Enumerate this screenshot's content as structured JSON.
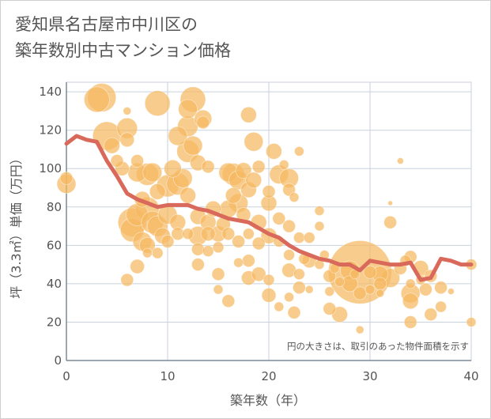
{
  "chart_data": {
    "type": "scatter",
    "title": "愛知県名古屋市中川区の\n築年数別中古マンション価格",
    "xlabel": "築年数（年）",
    "ylabel": "坪（3.3㎡）単価（万円）",
    "xlim": [
      0,
      40
    ],
    "ylim": [
      0,
      145
    ],
    "x_ticks": [
      0,
      10,
      20,
      30,
      40
    ],
    "y_ticks": [
      0,
      20,
      40,
      60,
      80,
      100,
      120,
      140
    ],
    "grid": true,
    "note": "円の大きさは、取引のあった物件面積を示す",
    "colors": {
      "bubble": "#f5b961",
      "line": "#d9695a",
      "grid": "#c8d2dc",
      "text": "#555555"
    },
    "line_series": {
      "x": [
        0,
        1,
        2,
        3,
        4,
        5,
        6,
        7,
        8,
        9,
        10,
        11,
        12,
        13,
        14,
        15,
        16,
        17,
        18,
        19,
        20,
        21,
        22,
        23,
        24,
        25,
        26,
        27,
        28,
        29,
        30,
        31,
        32,
        33,
        34,
        35,
        36,
        37,
        38,
        39,
        40
      ],
      "y": [
        113,
        117,
        115,
        114,
        104,
        96,
        87,
        84,
        82,
        80,
        81,
        81,
        81,
        79,
        78,
        76,
        74,
        73,
        72,
        69,
        66,
        64,
        60,
        57,
        55,
        53,
        52,
        50,
        50,
        47,
        52,
        51,
        50,
        50,
        51,
        42,
        43,
        53,
        52,
        50,
        50
      ]
    },
    "bubbles": [
      {
        "x": 0,
        "y": 92,
        "s": 12
      },
      {
        "x": 0,
        "y": 95,
        "s": 8
      },
      {
        "x": 3,
        "y": 136,
        "s": 16
      },
      {
        "x": 3.5,
        "y": 137,
        "s": 18
      },
      {
        "x": 4,
        "y": 117,
        "s": 18
      },
      {
        "x": 4.5,
        "y": 112,
        "s": 10
      },
      {
        "x": 5,
        "y": 104,
        "s": 8
      },
      {
        "x": 5.5,
        "y": 100,
        "s": 9
      },
      {
        "x": 6,
        "y": 121,
        "s": 13
      },
      {
        "x": 6,
        "y": 115,
        "s": 9
      },
      {
        "x": 6,
        "y": 130,
        "s": 5
      },
      {
        "x": 6,
        "y": 42,
        "s": 8
      },
      {
        "x": 6.5,
        "y": 72,
        "s": 18
      },
      {
        "x": 6.5,
        "y": 68,
        "s": 15
      },
      {
        "x": 7,
        "y": 98,
        "s": 12
      },
      {
        "x": 7,
        "y": 104,
        "s": 8
      },
      {
        "x": 7,
        "y": 76,
        "s": 14
      },
      {
        "x": 7,
        "y": 49,
        "s": 9
      },
      {
        "x": 7.5,
        "y": 84,
        "s": 10
      },
      {
        "x": 7.5,
        "y": 62,
        "s": 12
      },
      {
        "x": 8,
        "y": 97,
        "s": 14
      },
      {
        "x": 8,
        "y": 79,
        "s": 15
      },
      {
        "x": 8,
        "y": 60,
        "s": 10
      },
      {
        "x": 8,
        "y": 56,
        "s": 6
      },
      {
        "x": 8.5,
        "y": 98,
        "s": 12
      },
      {
        "x": 8.5,
        "y": 72,
        "s": 14
      },
      {
        "x": 9,
        "y": 134,
        "s": 16
      },
      {
        "x": 9,
        "y": 88,
        "s": 10
      },
      {
        "x": 9,
        "y": 70,
        "s": 13
      },
      {
        "x": 9,
        "y": 56,
        "s": 7
      },
      {
        "x": 9.5,
        "y": 65,
        "s": 10
      },
      {
        "x": 10,
        "y": 91,
        "s": 14
      },
      {
        "x": 10,
        "y": 76,
        "s": 12
      },
      {
        "x": 10,
        "y": 62,
        "s": 8
      },
      {
        "x": 10.5,
        "y": 100,
        "s": 11
      },
      {
        "x": 11,
        "y": 117,
        "s": 12
      },
      {
        "x": 11,
        "y": 92,
        "s": 14
      },
      {
        "x": 11,
        "y": 72,
        "s": 10
      },
      {
        "x": 11,
        "y": 66,
        "s": 8
      },
      {
        "x": 11.5,
        "y": 95,
        "s": 12
      },
      {
        "x": 12,
        "y": 131,
        "s": 12
      },
      {
        "x": 12,
        "y": 122,
        "s": 13
      },
      {
        "x": 12,
        "y": 109,
        "s": 14
      },
      {
        "x": 12,
        "y": 86,
        "s": 10
      },
      {
        "x": 12,
        "y": 66,
        "s": 7
      },
      {
        "x": 12.5,
        "y": 136,
        "s": 16
      },
      {
        "x": 12.5,
        "y": 112,
        "s": 12
      },
      {
        "x": 13,
        "y": 103,
        "s": 10
      },
      {
        "x": 13,
        "y": 75,
        "s": 10
      },
      {
        "x": 13,
        "y": 65,
        "s": 12
      },
      {
        "x": 13,
        "y": 58,
        "s": 8
      },
      {
        "x": 13,
        "y": 50,
        "s": 8
      },
      {
        "x": 13.5,
        "y": 126,
        "s": 11
      },
      {
        "x": 13.5,
        "y": 124,
        "s": 8
      },
      {
        "x": 14,
        "y": 101,
        "s": 8
      },
      {
        "x": 14,
        "y": 72,
        "s": 10
      },
      {
        "x": 14,
        "y": 66,
        "s": 9
      },
      {
        "x": 14,
        "y": 57,
        "s": 7
      },
      {
        "x": 14.5,
        "y": 79,
        "s": 10
      },
      {
        "x": 15,
        "y": 66,
        "s": 10
      },
      {
        "x": 15,
        "y": 59,
        "s": 7
      },
      {
        "x": 15,
        "y": 45,
        "s": 8
      },
      {
        "x": 15,
        "y": 37,
        "s": 6
      },
      {
        "x": 15.5,
        "y": 71,
        "s": 9
      },
      {
        "x": 16,
        "y": 98,
        "s": 12
      },
      {
        "x": 16,
        "y": 79,
        "s": 11
      },
      {
        "x": 16,
        "y": 66,
        "s": 8
      },
      {
        "x": 16,
        "y": 31,
        "s": 8
      },
      {
        "x": 16.5,
        "y": 97,
        "s": 14
      },
      {
        "x": 16.5,
        "y": 86,
        "s": 10
      },
      {
        "x": 17,
        "y": 94,
        "s": 12
      },
      {
        "x": 17,
        "y": 82,
        "s": 12
      },
      {
        "x": 17,
        "y": 62,
        "s": 8
      },
      {
        "x": 17,
        "y": 51,
        "s": 6
      },
      {
        "x": 17.5,
        "y": 99,
        "s": 10
      },
      {
        "x": 17.5,
        "y": 76,
        "s": 9
      },
      {
        "x": 18,
        "y": 128,
        "s": 10
      },
      {
        "x": 18,
        "y": 89,
        "s": 10
      },
      {
        "x": 18,
        "y": 66,
        "s": 7
      },
      {
        "x": 18,
        "y": 52,
        "s": 8
      },
      {
        "x": 18,
        "y": 43,
        "s": 9
      },
      {
        "x": 18.5,
        "y": 114,
        "s": 12
      },
      {
        "x": 18.5,
        "y": 94,
        "s": 10
      },
      {
        "x": 19,
        "y": 101,
        "s": 8
      },
      {
        "x": 19,
        "y": 72,
        "s": 10
      },
      {
        "x": 19,
        "y": 45,
        "s": 9
      },
      {
        "x": 19,
        "y": 61,
        "s": 8
      },
      {
        "x": 20,
        "y": 88,
        "s": 8
      },
      {
        "x": 20,
        "y": 82,
        "s": 10
      },
      {
        "x": 20,
        "y": 65,
        "s": 10
      },
      {
        "x": 20,
        "y": 42,
        "s": 7
      },
      {
        "x": 20,
        "y": 34,
        "s": 9
      },
      {
        "x": 20.5,
        "y": 109,
        "s": 10
      },
      {
        "x": 21,
        "y": 97,
        "s": 12
      },
      {
        "x": 21,
        "y": 74,
        "s": 8
      },
      {
        "x": 21,
        "y": 62,
        "s": 7
      },
      {
        "x": 21,
        "y": 28,
        "s": 6
      },
      {
        "x": 21.5,
        "y": 102,
        "s": 6
      },
      {
        "x": 22,
        "y": 95,
        "s": 12
      },
      {
        "x": 22,
        "y": 89,
        "s": 8
      },
      {
        "x": 22,
        "y": 70,
        "s": 8
      },
      {
        "x": 22,
        "y": 55,
        "s": 7
      },
      {
        "x": 22,
        "y": 47,
        "s": 9
      },
      {
        "x": 22,
        "y": 33,
        "s": 6
      },
      {
        "x": 22.5,
        "y": 85,
        "s": 6
      },
      {
        "x": 22.5,
        "y": 25,
        "s": 8
      },
      {
        "x": 23,
        "y": 109,
        "s": 6
      },
      {
        "x": 23,
        "y": 64,
        "s": 7
      },
      {
        "x": 23,
        "y": 45,
        "s": 7
      },
      {
        "x": 23,
        "y": 38,
        "s": 8
      },
      {
        "x": 23.5,
        "y": 53,
        "s": 7
      },
      {
        "x": 24,
        "y": 64,
        "s": 7
      },
      {
        "x": 24,
        "y": 52,
        "s": 9
      },
      {
        "x": 24,
        "y": 37,
        "s": 5
      },
      {
        "x": 25,
        "y": 78,
        "s": 6
      },
      {
        "x": 25,
        "y": 70,
        "s": 6
      },
      {
        "x": 25,
        "y": 50,
        "s": 6
      },
      {
        "x": 25.5,
        "y": 55,
        "s": 6
      },
      {
        "x": 26,
        "y": 44,
        "s": 8
      },
      {
        "x": 26,
        "y": 36,
        "s": 6
      },
      {
        "x": 26,
        "y": 27,
        "s": 8
      },
      {
        "x": 26.5,
        "y": 48,
        "s": 6
      },
      {
        "x": 27,
        "y": 24,
        "s": 10
      },
      {
        "x": 27,
        "y": 41,
        "s": 6
      },
      {
        "x": 28,
        "y": 47,
        "s": 12
      },
      {
        "x": 28,
        "y": 40,
        "s": 10
      },
      {
        "x": 28.5,
        "y": 45,
        "s": 6
      },
      {
        "x": 29,
        "y": 46,
        "s": 40
      },
      {
        "x": 29,
        "y": 35,
        "s": 8
      },
      {
        "x": 29,
        "y": 16,
        "s": 5
      },
      {
        "x": 30,
        "y": 46,
        "s": 8
      },
      {
        "x": 30,
        "y": 37,
        "s": 6
      },
      {
        "x": 31,
        "y": 45,
        "s": 10
      },
      {
        "x": 31,
        "y": 40,
        "s": 8
      },
      {
        "x": 31,
        "y": 35,
        "s": 5
      },
      {
        "x": 32,
        "y": 72,
        "s": 8
      },
      {
        "x": 32,
        "y": 43,
        "s": 12
      },
      {
        "x": 32,
        "y": 82,
        "s": 3
      },
      {
        "x": 33,
        "y": 104,
        "s": 4
      },
      {
        "x": 33,
        "y": 48,
        "s": 8
      },
      {
        "x": 33.5,
        "y": 52,
        "s": 7
      },
      {
        "x": 34,
        "y": 35,
        "s": 12
      },
      {
        "x": 34,
        "y": 31,
        "s": 10
      },
      {
        "x": 34,
        "y": 54,
        "s": 8
      },
      {
        "x": 34,
        "y": 20,
        "s": 8
      },
      {
        "x": 34,
        "y": 40,
        "s": 6
      },
      {
        "x": 35,
        "y": 48,
        "s": 10
      },
      {
        "x": 35,
        "y": 42,
        "s": 6
      },
      {
        "x": 35.5,
        "y": 37,
        "s": 8
      },
      {
        "x": 36,
        "y": 44,
        "s": 8
      },
      {
        "x": 36,
        "y": 24,
        "s": 8
      },
      {
        "x": 37,
        "y": 38,
        "s": 8
      },
      {
        "x": 37,
        "y": 28,
        "s": 7
      },
      {
        "x": 38,
        "y": 36,
        "s": 4
      },
      {
        "x": 40,
        "y": 50,
        "s": 7
      },
      {
        "x": 40,
        "y": 20,
        "s": 6
      }
    ]
  }
}
